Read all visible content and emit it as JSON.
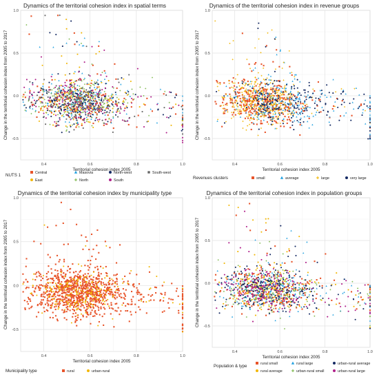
{
  "chart_data": [
    {
      "type": "scatter",
      "title": "Dynamics of the territorial cohesion index in spatial terms",
      "xlabel": "Territorial cohesion index 2005",
      "ylabel": "Change in the territorial cohesion index from 2005 to 2017",
      "xlim": [
        0.3,
        1.0
      ],
      "ylim": [
        -0.75,
        1.0
      ],
      "xticks": [
        0.4,
        0.6,
        0.8,
        1.0
      ],
      "xtick_labels": [
        "0.4",
        "0.6",
        "0.8",
        "1.0"
      ],
      "yticks": [
        -0.5,
        0.0,
        0.5,
        1.0
      ],
      "ytick_labels": [
        "-0.5",
        "0.0",
        "0.5",
        "1.0"
      ],
      "grid": true,
      "legend_position": "bottom",
      "legend_title": "NUTS 1",
      "series": [
        {
          "name": "Central",
          "color": "#e8542a",
          "marker": "square"
        },
        {
          "name": "East",
          "color": "#f2b705",
          "marker": "circle"
        },
        {
          "name": "Masovia",
          "color": "#1fa0e0",
          "marker": "triangle"
        },
        {
          "name": "North",
          "color": "#7ab648",
          "marker": "plus"
        },
        {
          "name": "North-west",
          "color": "#152a63",
          "marker": "circle"
        },
        {
          "name": "South",
          "color": "#b0208a",
          "marker": "circle"
        },
        {
          "name": "South-west",
          "color": "#666666",
          "marker": "asterisk"
        }
      ],
      "legend_rows": [
        [
          "Central",
          "Masovia",
          "North-west",
          "South-west"
        ],
        [
          "East",
          "North",
          "South"
        ]
      ]
    },
    {
      "type": "scatter",
      "title": "Dynamics of the territorial cohesion index in revenue groups",
      "xlabel": "Territorial cohesion index 2005",
      "ylabel": "Change in the territorial cohesion index from 2005 to 2017",
      "xlim": [
        0.3,
        1.0
      ],
      "ylim": [
        -0.75,
        1.0
      ],
      "xticks": [
        0.4,
        0.6,
        0.8,
        1.0
      ],
      "xtick_labels": [
        "0.4",
        "0.6",
        "0.8",
        "1.0"
      ],
      "yticks": [
        -0.5,
        0.0,
        0.5,
        1.0
      ],
      "ytick_labels": [
        "-0.5",
        "0.0",
        "0.5",
        "1.0"
      ],
      "grid": true,
      "legend_position": "bottom",
      "legend_title": "Revenues clusters",
      "series": [
        {
          "name": "small",
          "color": "#e8542a",
          "marker": "square"
        },
        {
          "name": "average",
          "color": "#1fa0e0",
          "marker": "triangle"
        },
        {
          "name": "large",
          "color": "#f2b705",
          "marker": "plus"
        },
        {
          "name": "very large",
          "color": "#152a63",
          "marker": "circle"
        }
      ],
      "legend_rows": [
        [
          "small",
          "average",
          "large",
          "very large"
        ]
      ]
    },
    {
      "type": "scatter",
      "title": "Dynamics of the territorial cohesion index by municipality type",
      "xlabel": "Territorial cohesion index 2005",
      "ylabel": "Change in the territorial cohesion index from 2005 to 2017",
      "xlim": [
        0.3,
        1.0
      ],
      "ylim": [
        -0.75,
        1.0
      ],
      "xticks": [
        0.4,
        0.6,
        0.8,
        1.0
      ],
      "xtick_labels": [
        "0.4",
        "0.6",
        "0.8",
        "1.0"
      ],
      "yticks": [
        -0.5,
        0.0,
        0.5,
        1.0
      ],
      "ytick_labels": [
        "-0.5",
        "0.0",
        "0.5",
        "1.0"
      ],
      "grid": true,
      "legend_position": "bottom",
      "legend_title": "Municipality type",
      "series": [
        {
          "name": "rural",
          "color": "#e8542a",
          "marker": "square"
        },
        {
          "name": "urban-rural",
          "color": "#f2b705",
          "marker": "circle"
        }
      ],
      "legend_rows": [
        [
          "rural",
          "urban-rural"
        ]
      ]
    },
    {
      "type": "scatter",
      "title": "Dynamics of the territorial cohesion index in population groups",
      "xlabel": "Territorial cohesion index 2005",
      "ylabel": "Change in the territorial cohesion index from 2005 to 2017",
      "xlim": [
        0.3,
        1.0
      ],
      "ylim": [
        -0.75,
        1.0
      ],
      "xticks": [
        0.4,
        0.6,
        0.8,
        1.0
      ],
      "xtick_labels": [
        "0.4",
        "0.6",
        "0.8",
        "1.0"
      ],
      "yticks": [
        -0.5,
        0.0,
        0.5,
        1.0
      ],
      "ytick_labels": [
        "-0.5",
        "0.0",
        "0.5",
        "1.0"
      ],
      "grid": true,
      "legend_position": "bottom",
      "legend_title": "Population & type",
      "series": [
        {
          "name": "rural small",
          "color": "#e8542a",
          "marker": "square"
        },
        {
          "name": "rural average",
          "color": "#f2b705",
          "marker": "circle"
        },
        {
          "name": "rural large",
          "color": "#1fa0e0",
          "marker": "triangle"
        },
        {
          "name": "urban-rural small",
          "color": "#7ab648",
          "marker": "plus"
        },
        {
          "name": "urban-rural average",
          "color": "#152a63",
          "marker": "circle"
        },
        {
          "name": "urban-rural large",
          "color": "#b0208a",
          "marker": "circle"
        }
      ],
      "legend_rows": [
        [
          "rural small",
          "rural large",
          "urban-rural average"
        ],
        [
          "rural average",
          "urban-rural small",
          "urban-rural large"
        ]
      ]
    }
  ]
}
